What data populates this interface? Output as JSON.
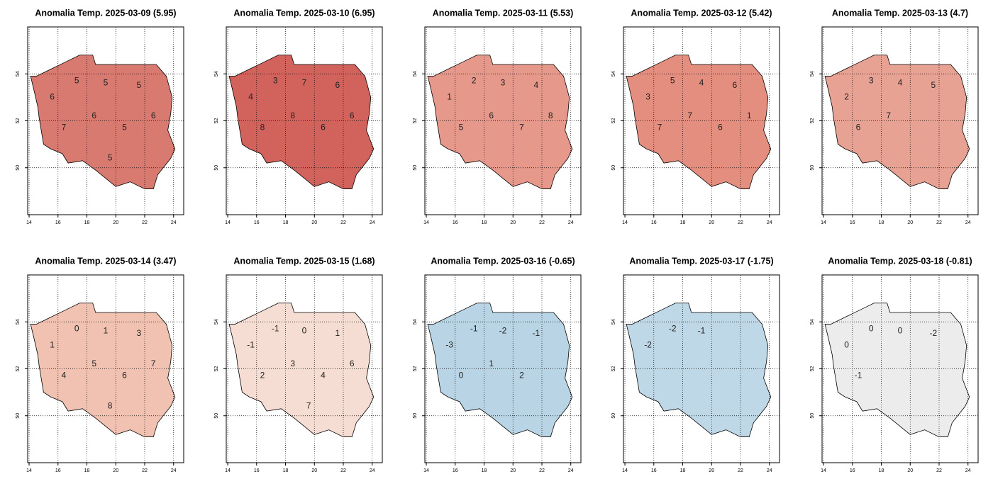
{
  "panels": [
    {
      "title": "Anomalia Temp. 2025-03-09 (5.95)",
      "color": "#d97a70",
      "contour_labels": [
        "6",
        "5",
        "5",
        "5",
        "7",
        "6",
        "5",
        "6",
        "5"
      ]
    },
    {
      "title": "Anomalia Temp. 2025-03-10 (6.95)",
      "color": "#d2625c",
      "contour_labels": [
        "4",
        "3",
        "7",
        "6",
        "8",
        "8",
        "6",
        "6"
      ]
    },
    {
      "title": "Anomalia Temp. 2025-03-11 (5.53)",
      "color": "#e6988a",
      "contour_labels": [
        "1",
        "2",
        "3",
        "4",
        "5",
        "6",
        "7",
        "8"
      ]
    },
    {
      "title": "Anomalia Temp. 2025-03-12 (5.42)",
      "color": "#e48e80",
      "contour_labels": [
        "3",
        "5",
        "4",
        "6",
        "7",
        "7",
        "6",
        "1"
      ]
    },
    {
      "title": "Anomalia Temp. 2025-03-13 (4.7)",
      "color": "#e8a294",
      "contour_labels": [
        "2",
        "3",
        "4",
        "5",
        "6",
        "7"
      ]
    },
    {
      "title": "Anomalia Temp. 2025-03-14 (3.47)",
      "color": "#f1c2b2",
      "contour_labels": [
        "1",
        "0",
        "1",
        "3",
        "4",
        "5",
        "6",
        "7",
        "8"
      ]
    },
    {
      "title": "Anomalia Temp. 2025-03-15 (1.68)",
      "color": "#f6ddd4",
      "contour_labels": [
        "-1",
        "-1",
        "0",
        "1",
        "2",
        "3",
        "4",
        "6",
        "7"
      ]
    },
    {
      "title": "Anomalia Temp. 2025-03-16 (-0.65)",
      "color": "#b9d5e5",
      "contour_labels": [
        "-3",
        "-1",
        "-2",
        "-1",
        "0",
        "1",
        "2"
      ]
    },
    {
      "title": "Anomalia Temp. 2025-03-17 (-1.75)",
      "color": "#bfd8e8",
      "contour_labels": [
        "-2",
        "-2",
        "-1"
      ]
    },
    {
      "title": "Anomalia Temp. 2025-03-18 (-0.81)",
      "color": "#ececec",
      "contour_labels": [
        "0",
        "0",
        "0",
        "-2",
        "-1"
      ]
    }
  ],
  "xlim": [
    13.9,
    24.7
  ],
  "ylim": [
    48,
    56
  ],
  "xticks": [
    14,
    16,
    18,
    20,
    22,
    24
  ],
  "yticks": [
    50,
    52,
    54
  ]
}
